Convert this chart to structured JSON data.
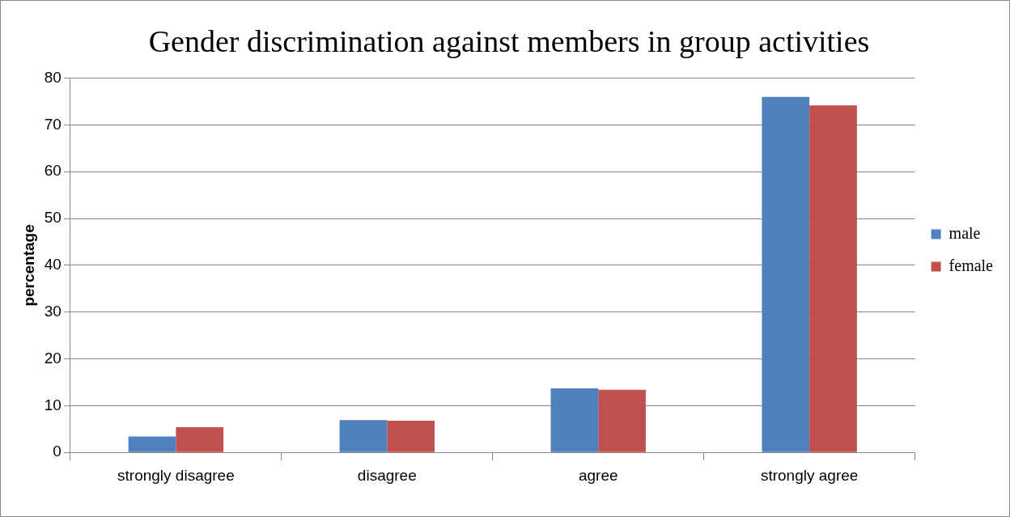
{
  "chart_data": {
    "type": "bar",
    "title": "Gender discrimination against members in group activities",
    "ylabel": "percentage",
    "categories": [
      "strongly disagree",
      "disagree",
      "agree",
      "strongly agree"
    ],
    "series": [
      {
        "name": "male",
        "color": "#4f81bd",
        "values": [
          3.4,
          6.9,
          13.7,
          76.0
        ]
      },
      {
        "name": "female",
        "color": "#c0504d",
        "values": [
          5.4,
          6.8,
          13.4,
          74.2
        ]
      }
    ],
    "ylim": [
      0,
      80
    ],
    "yticks": [
      0,
      10,
      20,
      30,
      40,
      50,
      60,
      70,
      80
    ],
    "grid": "y",
    "legend": "right"
  }
}
